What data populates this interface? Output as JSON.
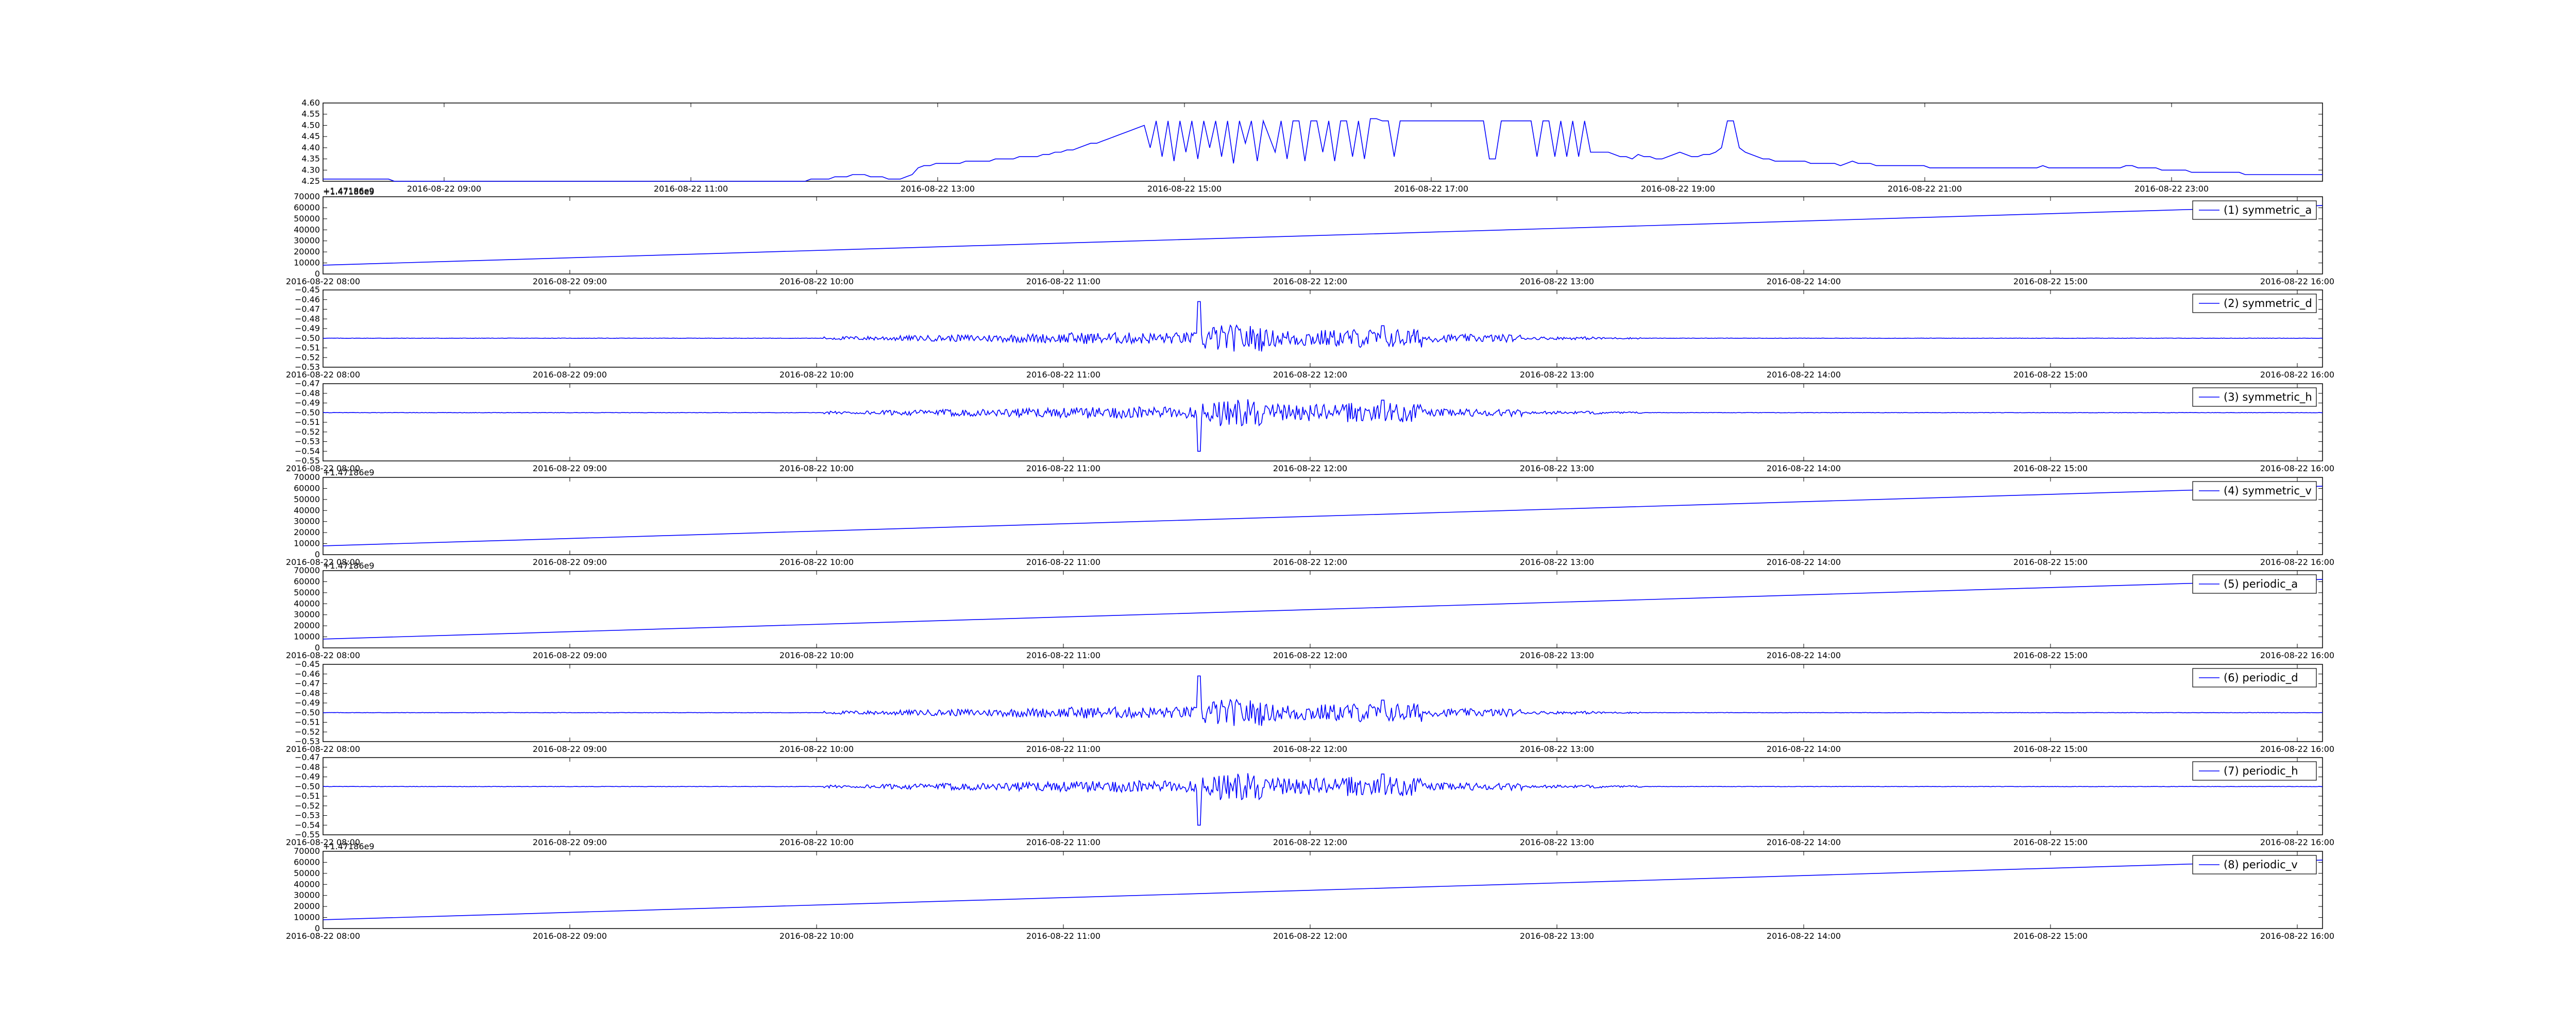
{
  "chart_data": [
    {
      "type": "line",
      "series": [
        {
          "values": [
            4.26,
            4.26,
            4.26,
            4.26,
            4.26,
            4.26,
            4.26,
            4.26,
            4.26,
            4.26,
            4.26,
            4.26,
            4.25,
            4.25,
            4.25,
            4.25,
            4.25,
            4.25,
            4.25,
            4.25,
            4.25,
            4.25,
            4.25,
            4.25,
            4.25,
            4.25,
            4.25,
            4.25,
            4.25,
            4.25,
            4.25,
            4.25,
            4.25,
            4.25,
            4.25,
            4.25,
            4.25,
            4.25,
            4.25,
            4.25,
            4.25,
            4.25,
            4.25,
            4.25,
            4.25,
            4.25,
            4.25,
            4.25,
            4.25,
            4.25,
            4.25,
            4.25,
            4.25,
            4.25,
            4.25,
            4.25,
            4.25,
            4.25,
            4.25,
            4.25,
            4.25,
            4.25,
            4.25,
            4.25,
            4.25,
            4.25,
            4.25,
            4.25,
            4.25,
            4.25,
            4.25,
            4.25,
            4.25,
            4.25,
            4.25,
            4.25,
            4.25,
            4.25,
            4.25,
            4.25,
            4.25,
            4.25,
            4.26,
            4.26,
            4.26,
            4.26,
            4.27,
            4.27,
            4.27,
            4.28,
            4.28,
            4.28,
            4.27,
            4.27,
            4.27,
            4.26,
            4.26,
            4.26,
            4.27,
            4.28,
            4.31,
            4.32,
            4.32,
            4.33,
            4.33,
            4.33,
            4.33,
            4.33,
            4.34,
            4.34,
            4.34,
            4.34,
            4.34,
            4.35,
            4.35,
            4.35,
            4.35,
            4.36,
            4.36,
            4.36,
            4.36,
            4.37,
            4.37,
            4.38,
            4.38,
            4.39,
            4.39,
            4.4,
            4.41,
            4.42,
            4.42,
            4.43,
            4.44,
            4.45,
            4.46,
            4.47,
            4.48,
            4.49,
            4.5,
            4.4,
            4.52,
            4.36,
            4.52,
            4.34,
            4.52,
            4.38,
            4.52,
            4.35,
            4.52,
            4.4,
            4.52,
            4.36,
            4.52,
            4.33,
            4.52,
            4.42,
            4.52,
            4.34,
            4.52,
            4.45,
            4.38,
            4.52,
            4.35,
            4.52,
            4.52,
            4.34,
            4.52,
            4.52,
            4.38,
            4.52,
            4.34,
            4.52,
            4.52,
            4.36,
            4.52,
            4.35,
            4.53,
            4.53,
            4.52,
            4.52,
            4.36,
            4.52,
            4.52,
            4.52,
            4.52,
            4.52,
            4.52,
            4.52,
            4.52,
            4.52,
            4.52,
            4.52,
            4.52,
            4.52,
            4.52,
            4.52,
            4.35,
            4.35,
            4.52,
            4.52,
            4.52,
            4.52,
            4.52,
            4.52,
            4.36,
            4.52,
            4.52,
            4.36,
            4.52,
            4.36,
            4.52,
            4.36,
            4.52,
            4.38,
            4.38,
            4.38,
            4.38,
            4.37,
            4.36,
            4.36,
            4.35,
            4.37,
            4.36,
            4.36,
            4.35,
            4.35,
            4.36,
            4.37,
            4.38,
            4.37,
            4.36,
            4.36,
            4.37,
            4.37,
            4.38,
            4.4,
            4.52,
            4.52,
            4.4,
            4.38,
            4.37,
            4.36,
            4.35,
            4.35,
            4.34,
            4.34,
            4.34,
            4.34,
            4.34,
            4.34,
            4.33,
            4.33,
            4.33,
            4.33,
            4.33,
            4.32,
            4.33,
            4.34,
            4.33,
            4.33,
            4.33,
            4.32,
            4.32,
            4.32,
            4.32,
            4.32,
            4.32,
            4.32,
            4.32,
            4.32,
            4.31,
            4.31,
            4.31,
            4.31,
            4.31,
            4.31,
            4.31,
            4.31,
            4.31,
            4.31,
            4.31,
            4.31,
            4.31,
            4.31,
            4.31,
            4.31,
            4.31,
            4.31,
            4.31,
            4.32,
            4.31,
            4.31,
            4.31,
            4.31,
            4.31,
            4.31,
            4.31,
            4.31,
            4.31,
            4.31,
            4.31,
            4.31,
            4.31,
            4.32,
            4.32,
            4.31,
            4.31,
            4.31,
            4.31,
            4.3,
            4.3,
            4.3,
            4.3,
            4.3,
            4.29,
            4.29,
            4.29,
            4.29,
            4.29,
            4.29,
            4.29,
            4.29,
            4.29,
            4.28,
            4.28,
            4.28,
            4.28,
            4.28,
            4.28,
            4.28,
            4.28,
            4.28,
            4.28,
            4.28,
            4.28,
            4.28,
            4.28
          ]
        }
      ],
      "ylim": [
        4.25,
        4.6
      ],
      "yticks": [
        "4.25",
        "4.30",
        "4.35",
        "4.40",
        "4.45",
        "4.50",
        "4.55",
        "4.60"
      ],
      "xticks": [
        "2016-08-22 09:00",
        "2016-08-22 11:00",
        "2016-08-22 13:00",
        "2016-08-22 15:00",
        "2016-08-22 17:00",
        "2016-08-22 19:00",
        "2016-08-22 21:00",
        "2016-08-22 23:00"
      ],
      "x_offset_text": "+1.47186e9"
    },
    {
      "type": "line",
      "series": [
        {
          "name": "(1) symmetric_a",
          "values": [
            8000,
            62000
          ]
        }
      ],
      "ylim": [
        0,
        70000
      ],
      "yticks": [
        "0",
        "10000",
        "20000",
        "30000",
        "40000",
        "50000",
        "60000",
        "70000"
      ],
      "xticks": [
        "2016-08-22 08:00",
        "2016-08-22 09:00",
        "2016-08-22 10:00",
        "2016-08-22 11:00",
        "2016-08-22 12:00",
        "2016-08-22 13:00",
        "2016-08-22 14:00",
        "2016-08-22 15:00",
        "2016-08-22 16:00"
      ],
      "y_offset_text": "+1.47186e9",
      "legend": "top-right"
    },
    {
      "type": "line",
      "series": [
        {
          "name": "(2) symmetric_d",
          "values": [
            -0.5
          ]
        }
      ],
      "ylim": [
        -0.53,
        -0.45
      ],
      "yticks": [
        "−0.53",
        "−0.52",
        "−0.51",
        "−0.50",
        "−0.49",
        "−0.48",
        "−0.47",
        "−0.46",
        "−0.45"
      ],
      "xticks": [
        "2016-08-22 08:00",
        "2016-08-22 09:00",
        "2016-08-22 10:00",
        "2016-08-22 11:00",
        "2016-08-22 12:00",
        "2016-08-22 13:00",
        "2016-08-22 14:00",
        "2016-08-22 15:00",
        "2016-08-22 16:00"
      ],
      "legend": "top-right"
    },
    {
      "type": "line",
      "series": [
        {
          "name": "(3) symmetric_h",
          "values": [
            -0.5
          ]
        }
      ],
      "ylim": [
        -0.55,
        -0.47
      ],
      "yticks": [
        "−0.55",
        "−0.54",
        "−0.53",
        "−0.52",
        "−0.51",
        "−0.50",
        "−0.49",
        "−0.48",
        "−0.47"
      ],
      "xticks": [
        "2016-08-22 08:00",
        "2016-08-22 09:00",
        "2016-08-22 10:00",
        "2016-08-22 11:00",
        "2016-08-22 12:00",
        "2016-08-22 13:00",
        "2016-08-22 14:00",
        "2016-08-22 15:00",
        "2016-08-22 16:00"
      ],
      "legend": "top-right"
    },
    {
      "type": "line",
      "series": [
        {
          "name": "(4) symmetric_v",
          "values": [
            8000,
            62000
          ]
        }
      ],
      "ylim": [
        0,
        70000
      ],
      "yticks": [
        "0",
        "10000",
        "20000",
        "30000",
        "40000",
        "50000",
        "60000",
        "70000"
      ],
      "xticks": [
        "2016-08-22 08:00",
        "2016-08-22 09:00",
        "2016-08-22 10:00",
        "2016-08-22 11:00",
        "2016-08-22 12:00",
        "2016-08-22 13:00",
        "2016-08-22 14:00",
        "2016-08-22 15:00",
        "2016-08-22 16:00"
      ],
      "y_offset_text": "+1.47186e9",
      "legend": "top-right"
    },
    {
      "type": "line",
      "series": [
        {
          "name": "(5) periodic_a",
          "values": [
            8000,
            62000
          ]
        }
      ],
      "ylim": [
        0,
        70000
      ],
      "yticks": [
        "0",
        "10000",
        "20000",
        "30000",
        "40000",
        "50000",
        "60000",
        "70000"
      ],
      "xticks": [
        "2016-08-22 08:00",
        "2016-08-22 09:00",
        "2016-08-22 10:00",
        "2016-08-22 11:00",
        "2016-08-22 12:00",
        "2016-08-22 13:00",
        "2016-08-22 14:00",
        "2016-08-22 15:00",
        "2016-08-22 16:00"
      ],
      "y_offset_text": "+1.47186e9",
      "legend": "top-right"
    },
    {
      "type": "line",
      "series": [
        {
          "name": "(6) periodic_d",
          "values": [
            -0.5
          ]
        }
      ],
      "ylim": [
        -0.53,
        -0.45
      ],
      "yticks": [
        "−0.53",
        "−0.52",
        "−0.51",
        "−0.50",
        "−0.49",
        "−0.48",
        "−0.47",
        "−0.46",
        "−0.45"
      ],
      "xticks": [
        "2016-08-22 08:00",
        "2016-08-22 09:00",
        "2016-08-22 10:00",
        "2016-08-22 11:00",
        "2016-08-22 12:00",
        "2016-08-22 13:00",
        "2016-08-22 14:00",
        "2016-08-22 15:00",
        "2016-08-22 16:00"
      ],
      "legend": "top-right"
    },
    {
      "type": "line",
      "series": [
        {
          "name": "(7) periodic_h",
          "values": [
            -0.5
          ]
        }
      ],
      "ylim": [
        -0.55,
        -0.47
      ],
      "yticks": [
        "−0.55",
        "−0.54",
        "−0.53",
        "−0.52",
        "−0.51",
        "−0.50",
        "−0.49",
        "−0.48",
        "−0.47"
      ],
      "xticks": [
        "2016-08-22 08:00",
        "2016-08-22 09:00",
        "2016-08-22 10:00",
        "2016-08-22 11:00",
        "2016-08-22 12:00",
        "2016-08-22 13:00",
        "2016-08-22 14:00",
        "2016-08-22 15:00",
        "2016-08-22 16:00"
      ],
      "legend": "top-right"
    },
    {
      "type": "line",
      "series": [
        {
          "name": "(8) periodic_v",
          "values": [
            8000,
            62000
          ]
        }
      ],
      "ylim": [
        0,
        70000
      ],
      "yticks": [
        "0",
        "10000",
        "20000",
        "30000",
        "40000",
        "50000",
        "60000",
        "70000"
      ],
      "xticks": [
        "2016-08-22 08:00",
        "2016-08-22 09:00",
        "2016-08-22 10:00",
        "2016-08-22 11:00",
        "2016-08-22 12:00",
        "2016-08-22 13:00",
        "2016-08-22 14:00",
        "2016-08-22 15:00",
        "2016-08-22 16:00"
      ],
      "y_offset_text": "+1.47186e9",
      "legend": "top-right"
    }
  ],
  "colors": {
    "line": "#0000ff",
    "axes": "#000000",
    "legend_line": "#0000ff"
  }
}
